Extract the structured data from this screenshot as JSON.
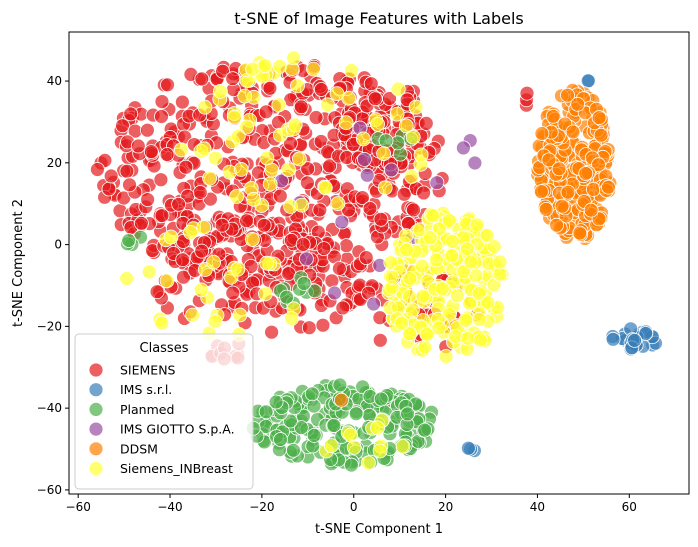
{
  "chart_data": {
    "type": "scatter",
    "title": "t-SNE of Image Features with Labels",
    "xlabel": "t-SNE Component 1",
    "ylabel": "t-SNE Component 2",
    "xlim": [
      -62,
      73
    ],
    "ylim": [
      -61,
      52
    ],
    "xticks": [
      -60,
      -40,
      -20,
      0,
      20,
      40,
      60
    ],
    "yticks": [
      -60,
      -40,
      -20,
      0,
      20,
      40
    ],
    "grid": false,
    "legend": {
      "title": "Classes",
      "placement": "lower-left"
    },
    "series": [
      {
        "name": "SIEMENS",
        "color": "#e41a1c",
        "clusters": [
          {
            "cx": -18,
            "cy": 18,
            "rx": 38,
            "ry": 27,
            "n": 520
          },
          {
            "cx": -20,
            "cy": -8,
            "rx": 25,
            "ry": 14,
            "n": 140
          },
          {
            "cx": 5,
            "cy": 30,
            "rx": 12,
            "ry": 12,
            "n": 90
          },
          {
            "cx": 14,
            "cy": -16,
            "rx": 14,
            "ry": 10,
            "n": 45
          },
          {
            "cx": 38,
            "cy": 36,
            "rx": 2,
            "ry": 2,
            "n": 3
          },
          {
            "cx": -28,
            "cy": -26,
            "rx": 6,
            "ry": 2,
            "n": 10
          }
        ]
      },
      {
        "name": "IMS s.r.l.",
        "color": "#377eb8",
        "clusters": [
          {
            "cx": 61,
            "cy": -23.5,
            "rx": 5,
            "ry": 3,
            "n": 24
          },
          {
            "cx": 25.5,
            "cy": -50,
            "rx": 1,
            "ry": 0.8,
            "n": 3
          },
          {
            "cx": 50.5,
            "cy": 40,
            "rx": 0.8,
            "ry": 0.5,
            "n": 2
          }
        ]
      },
      {
        "name": "Planmed",
        "color": "#4daf4a",
        "clusters": [
          {
            "cx": -2,
            "cy": -44,
            "rx": 20,
            "ry": 10,
            "n": 220
          },
          {
            "cx": -12,
            "cy": -11,
            "rx": 4,
            "ry": 4,
            "n": 10
          },
          {
            "cx": 10,
            "cy": 25,
            "rx": 5,
            "ry": 3,
            "n": 6
          },
          {
            "cx": -50,
            "cy": 1,
            "rx": 4,
            "ry": 2,
            "n": 4
          }
        ]
      },
      {
        "name": "IMS GIOTTO S.p.A.",
        "color": "#984ea3",
        "clusters": [
          {
            "cx": 8,
            "cy": 10,
            "rx": 25,
            "ry": 25,
            "n": 18
          }
        ]
      },
      {
        "name": "DDSM",
        "color": "#ff7f00",
        "clusters": [
          {
            "cx": 48,
            "cy": 19,
            "rx": 8,
            "ry": 19,
            "n": 280
          },
          {
            "cx": -3,
            "cy": -39,
            "rx": 1,
            "ry": 1,
            "n": 1
          }
        ]
      },
      {
        "name": "Siemens_INBreast",
        "color": "#ffff33",
        "clusters": [
          {
            "cx": 20,
            "cy": -10,
            "rx": 13,
            "ry": 18,
            "n": 220
          },
          {
            "cx": -10,
            "cy": 26,
            "rx": 28,
            "ry": 18,
            "n": 60
          },
          {
            "cx": -30,
            "cy": -10,
            "rx": 20,
            "ry": 15,
            "n": 30
          },
          {
            "cx": 3,
            "cy": -48,
            "rx": 10,
            "ry": 6,
            "n": 12
          },
          {
            "cx": -18,
            "cy": 44,
            "rx": 6,
            "ry": 3,
            "n": 12
          }
        ]
      }
    ]
  }
}
